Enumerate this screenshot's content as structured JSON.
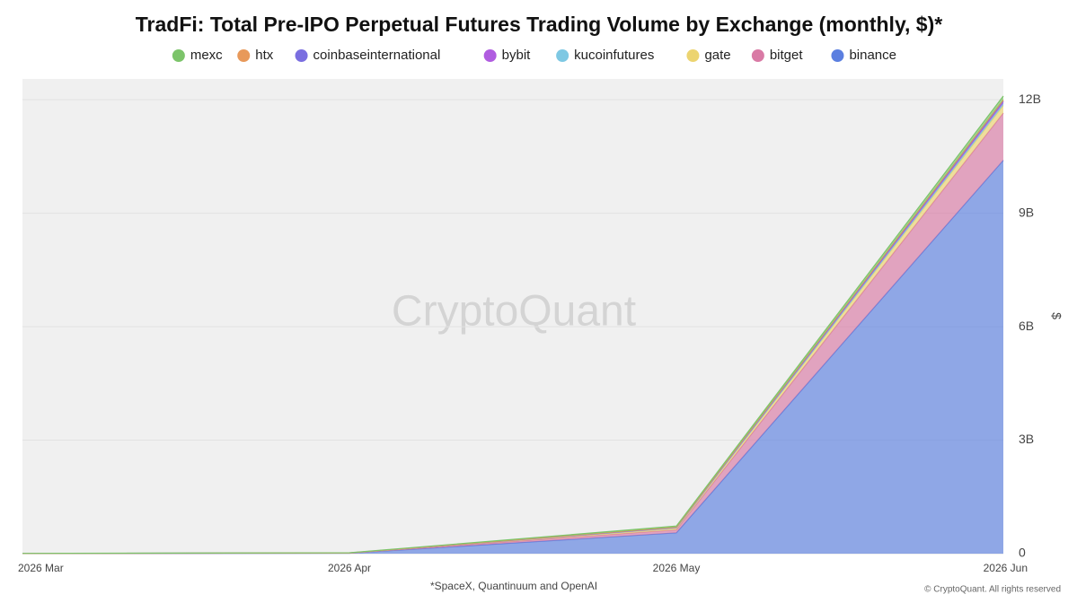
{
  "chart_data": {
    "type": "stacked_area",
    "title": "TradFi: Total Pre-IPO Perpetual Futures Trading Volume by Exchange (monthly, $)*",
    "footnote": "*SpaceX, Quantinuum and OpenAI",
    "copyright": "© CryptoQuant. All rights reserved",
    "watermark": "CryptoQuant",
    "y_label": "$",
    "categories": [
      "2026 Mar",
      "2026 Apr",
      "2026 May",
      "2026 Jun"
    ],
    "series": [
      {
        "name": "binance",
        "color": "#5b7fe0",
        "values": [
          5000000,
          10000000,
          550000000,
          10400000000
        ]
      },
      {
        "name": "bitget",
        "color": "#d97aa5",
        "values": [
          0,
          5000000,
          80000000,
          1250000000
        ]
      },
      {
        "name": "gate",
        "color": "#ecd470",
        "values": [
          0,
          3000000,
          40000000,
          200000000
        ]
      },
      {
        "name": "kucoinfutures",
        "color": "#7ec8e3",
        "values": [
          0,
          0,
          10000000,
          50000000
        ]
      },
      {
        "name": "bybit",
        "color": "#b05ce0",
        "values": [
          0,
          0,
          10000000,
          50000000
        ]
      },
      {
        "name": "coinbaseinternational",
        "color": "#7a6ee0",
        "values": [
          0,
          0,
          5000000,
          20000000
        ]
      },
      {
        "name": "htx",
        "color": "#e8995a",
        "values": [
          0,
          0,
          5000000,
          30000000
        ]
      },
      {
        "name": "mexc",
        "color": "#7cc46a",
        "values": [
          3000000,
          5000000,
          30000000,
          100000000
        ]
      }
    ],
    "ylim": [
      0,
      12550000000
    ],
    "yticks": [
      {
        "value": 0,
        "label": "0"
      },
      {
        "value": 3000000000,
        "label": "3B"
      },
      {
        "value": 6000000000,
        "label": "6B"
      },
      {
        "value": 9000000000,
        "label": "9B"
      },
      {
        "value": 12000000000,
        "label": "12B"
      }
    ],
    "grid": true
  }
}
